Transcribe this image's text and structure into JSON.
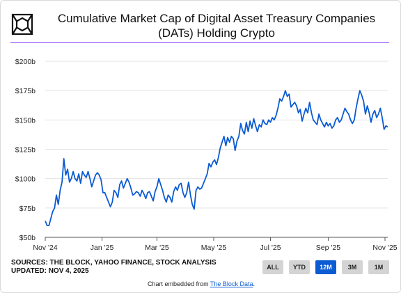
{
  "header": {
    "title_line1": "Cumulative Market Cap of Digital Asset Treasury Companies",
    "title_line2": "(DATs) Holding Crypto",
    "logo_icon": "the-block-cube-icon"
  },
  "colors": {
    "series": "#0b5bd3",
    "accent_rule": "#8a3ffc",
    "active_button": "#0b5bd3",
    "button": "#d4d4d4"
  },
  "chart_data": {
    "type": "line",
    "title": "Cumulative Market Cap of Digital Asset Treasury Companies (DATs) Holding Crypto",
    "xlabel": "",
    "ylabel": "",
    "x_ticks": [
      "Nov '24",
      "Jan '25",
      "Mar '25",
      "May '25",
      "Jul '25",
      "Sep '25",
      "Nov '25"
    ],
    "y_ticks": [
      "$50b",
      "$75b",
      "$100b",
      "$125b",
      "$150b",
      "$175b",
      "$200b"
    ],
    "ylim": [
      50,
      200
    ],
    "xlim": [
      "2024-11-01",
      "2025-11-04"
    ],
    "grid": "horizontal",
    "series": [
      {
        "name": "",
        "unit": "$b",
        "points": [
          [
            "2024-11-01",
            64
          ],
          [
            "2024-11-03",
            60
          ],
          [
            "2024-11-05",
            60
          ],
          [
            "2024-11-07",
            66
          ],
          [
            "2024-11-09",
            72
          ],
          [
            "2024-11-11",
            75
          ],
          [
            "2024-11-13",
            86
          ],
          [
            "2024-11-15",
            78
          ],
          [
            "2024-11-17",
            90
          ],
          [
            "2024-11-19",
            97
          ],
          [
            "2024-11-21",
            117
          ],
          [
            "2024-11-23",
            103
          ],
          [
            "2024-11-25",
            108
          ],
          [
            "2024-11-27",
            97
          ],
          [
            "2024-11-29",
            100
          ],
          [
            "2024-12-01",
            106
          ],
          [
            "2024-12-03",
            100
          ],
          [
            "2024-12-05",
            98
          ],
          [
            "2024-12-07",
            104
          ],
          [
            "2024-12-09",
            96
          ],
          [
            "2024-12-11",
            106
          ],
          [
            "2024-12-13",
            103
          ],
          [
            "2024-12-15",
            101
          ],
          [
            "2024-12-17",
            106
          ],
          [
            "2024-12-19",
            100
          ],
          [
            "2024-12-21",
            93
          ],
          [
            "2024-12-23",
            98
          ],
          [
            "2024-12-25",
            103
          ],
          [
            "2024-12-27",
            105
          ],
          [
            "2024-12-29",
            103
          ],
          [
            "2024-12-31",
            99
          ],
          [
            "2025-01-02",
            88
          ],
          [
            "2025-01-04",
            88
          ],
          [
            "2025-01-06",
            84
          ],
          [
            "2025-01-08",
            80
          ],
          [
            "2025-01-10",
            76
          ],
          [
            "2025-01-12",
            80
          ],
          [
            "2025-01-14",
            90
          ],
          [
            "2025-01-16",
            88
          ],
          [
            "2025-01-18",
            84
          ],
          [
            "2025-01-20",
            95
          ],
          [
            "2025-01-22",
            98
          ],
          [
            "2025-01-24",
            92
          ],
          [
            "2025-01-26",
            96
          ],
          [
            "2025-01-28",
            100
          ],
          [
            "2025-01-30",
            97
          ],
          [
            "2025-02-01",
            92
          ],
          [
            "2025-02-03",
            86
          ],
          [
            "2025-02-05",
            87
          ],
          [
            "2025-02-07",
            89
          ],
          [
            "2025-02-09",
            88
          ],
          [
            "2025-02-11",
            85
          ],
          [
            "2025-02-13",
            90
          ],
          [
            "2025-02-15",
            87
          ],
          [
            "2025-02-17",
            83
          ],
          [
            "2025-02-19",
            88
          ],
          [
            "2025-02-21",
            89
          ],
          [
            "2025-02-23",
            85
          ],
          [
            "2025-02-25",
            81
          ],
          [
            "2025-02-27",
            89
          ],
          [
            "2025-03-01",
            93
          ],
          [
            "2025-03-03",
            100
          ],
          [
            "2025-03-05",
            95
          ],
          [
            "2025-03-07",
            90
          ],
          [
            "2025-03-09",
            84
          ],
          [
            "2025-03-11",
            80
          ],
          [
            "2025-03-13",
            86
          ],
          [
            "2025-03-15",
            84
          ],
          [
            "2025-03-17",
            80
          ],
          [
            "2025-03-19",
            89
          ],
          [
            "2025-03-21",
            93
          ],
          [
            "2025-03-23",
            90
          ],
          [
            "2025-03-25",
            95
          ],
          [
            "2025-03-27",
            96
          ],
          [
            "2025-03-29",
            88
          ],
          [
            "2025-03-31",
            84
          ],
          [
            "2025-04-02",
            88
          ],
          [
            "2025-04-04",
            97
          ],
          [
            "2025-04-06",
            86
          ],
          [
            "2025-04-08",
            78
          ],
          [
            "2025-04-10",
            74
          ],
          [
            "2025-04-12",
            90
          ],
          [
            "2025-04-14",
            93
          ],
          [
            "2025-04-16",
            91
          ],
          [
            "2025-04-18",
            92
          ],
          [
            "2025-04-20",
            96
          ],
          [
            "2025-04-22",
            100
          ],
          [
            "2025-04-24",
            104
          ],
          [
            "2025-04-26",
            113
          ],
          [
            "2025-04-28",
            110
          ],
          [
            "2025-04-30",
            114
          ],
          [
            "2025-05-02",
            116
          ],
          [
            "2025-05-04",
            112
          ],
          [
            "2025-05-06",
            118
          ],
          [
            "2025-05-08",
            126
          ],
          [
            "2025-05-10",
            131
          ],
          [
            "2025-05-12",
            136
          ],
          [
            "2025-05-14",
            128
          ],
          [
            "2025-05-16",
            135
          ],
          [
            "2025-05-18",
            131
          ],
          [
            "2025-05-20",
            136
          ],
          [
            "2025-05-22",
            134
          ],
          [
            "2025-05-24",
            124
          ],
          [
            "2025-05-26",
            132
          ],
          [
            "2025-05-28",
            136
          ],
          [
            "2025-05-30",
            147
          ],
          [
            "2025-06-01",
            141
          ],
          [
            "2025-06-03",
            138
          ],
          [
            "2025-06-05",
            148
          ],
          [
            "2025-06-07",
            140
          ],
          [
            "2025-06-09",
            149
          ],
          [
            "2025-06-11",
            143
          ],
          [
            "2025-06-13",
            151
          ],
          [
            "2025-06-15",
            145
          ],
          [
            "2025-06-17",
            140
          ],
          [
            "2025-06-19",
            146
          ],
          [
            "2025-06-21",
            144
          ],
          [
            "2025-06-23",
            150
          ],
          [
            "2025-06-25",
            147
          ],
          [
            "2025-06-27",
            146
          ],
          [
            "2025-06-29",
            150
          ],
          [
            "2025-07-01",
            148
          ],
          [
            "2025-07-03",
            152
          ],
          [
            "2025-07-05",
            150
          ],
          [
            "2025-07-07",
            154
          ],
          [
            "2025-07-09",
            160
          ],
          [
            "2025-07-11",
            168
          ],
          [
            "2025-07-13",
            166
          ],
          [
            "2025-07-15",
            170
          ],
          [
            "2025-07-17",
            175
          ],
          [
            "2025-07-19",
            170
          ],
          [
            "2025-07-21",
            172
          ],
          [
            "2025-07-23",
            161
          ],
          [
            "2025-07-25",
            163
          ],
          [
            "2025-07-27",
            165
          ],
          [
            "2025-07-29",
            162
          ],
          [
            "2025-07-31",
            156
          ],
          [
            "2025-08-02",
            159
          ],
          [
            "2025-08-04",
            149
          ],
          [
            "2025-08-06",
            155
          ],
          [
            "2025-08-08",
            160
          ],
          [
            "2025-08-10",
            156
          ],
          [
            "2025-08-12",
            165
          ],
          [
            "2025-08-14",
            156
          ],
          [
            "2025-08-16",
            150
          ],
          [
            "2025-08-18",
            148
          ],
          [
            "2025-08-20",
            146
          ],
          [
            "2025-08-22",
            155
          ],
          [
            "2025-08-24",
            150
          ],
          [
            "2025-08-26",
            147
          ],
          [
            "2025-08-28",
            144
          ],
          [
            "2025-08-30",
            148
          ],
          [
            "2025-09-01",
            145
          ],
          [
            "2025-09-03",
            147
          ],
          [
            "2025-09-05",
            143
          ],
          [
            "2025-09-07",
            145
          ],
          [
            "2025-09-09",
            150
          ],
          [
            "2025-09-11",
            152
          ],
          [
            "2025-09-13",
            148
          ],
          [
            "2025-09-15",
            150
          ],
          [
            "2025-09-17",
            155
          ],
          [
            "2025-09-19",
            160
          ],
          [
            "2025-09-21",
            157
          ],
          [
            "2025-09-23",
            155
          ],
          [
            "2025-09-25",
            150
          ],
          [
            "2025-09-27",
            147
          ],
          [
            "2025-09-29",
            150
          ],
          [
            "2025-10-01",
            160
          ],
          [
            "2025-10-03",
            168
          ],
          [
            "2025-10-05",
            175
          ],
          [
            "2025-10-07",
            171
          ],
          [
            "2025-10-09",
            166
          ],
          [
            "2025-10-11",
            155
          ],
          [
            "2025-10-13",
            162
          ],
          [
            "2025-10-15",
            156
          ],
          [
            "2025-10-17",
            148
          ],
          [
            "2025-10-19",
            155
          ],
          [
            "2025-10-21",
            158
          ],
          [
            "2025-10-23",
            152
          ],
          [
            "2025-10-25",
            155
          ],
          [
            "2025-10-27",
            160
          ],
          [
            "2025-10-29",
            152
          ],
          [
            "2025-10-31",
            142
          ],
          [
            "2025-11-02",
            145
          ],
          [
            "2025-11-04",
            144
          ]
        ]
      }
    ]
  },
  "footer": {
    "sources": "SOURCES: THE BLOCK, YAHOO FINANCE, STOCK ANALYSIS",
    "updated": "UPDATED: NOV 4, 2025",
    "range_buttons": [
      {
        "label": "ALL",
        "active": false
      },
      {
        "label": "YTD",
        "active": false
      },
      {
        "label": "12M",
        "active": true
      },
      {
        "label": "3M",
        "active": false
      },
      {
        "label": "1M",
        "active": false
      }
    ],
    "embed_prefix": "Chart embedded from ",
    "embed_link": "The Block Data",
    "embed_suffix": "."
  }
}
